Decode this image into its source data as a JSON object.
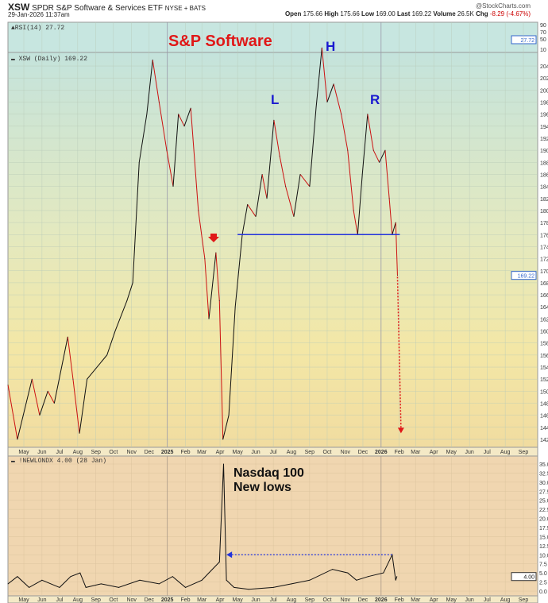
{
  "header": {
    "symbol": "XSW",
    "name": "SPDR S&P Software & Services ETF",
    "exchange": "NYSE + BATS",
    "datetime": "29-Jan-2026 11:37am",
    "credit": "@StockCharts.com",
    "open_label": "Open",
    "open": "175.66",
    "high_label": "High",
    "high": "175.66",
    "low_label": "Low",
    "low": "169.00",
    "last_label": "Last",
    "last": "169.22",
    "volume_label": "Volume",
    "volume": "26.5K",
    "chg_label": "Chg",
    "chg": "-8.29 (-4.67%)"
  },
  "colors": {
    "up": "#111111",
    "down": "#cc1111",
    "annotation_red": "#e01818",
    "annotation_blue": "#1a1ad0",
    "neckline": "#2233dd"
  },
  "chart_data": [
    {
      "type": "line",
      "panel": "rsi",
      "legend": "RSI(14) 27.72",
      "last_label": "27.72",
      "yticks": [
        "90",
        "70",
        "50",
        "10"
      ]
    },
    {
      "type": "line",
      "panel": "price",
      "legend": "XSW (Daily) 169.22",
      "last_label": "169.22",
      "ylim": [
        141,
        208
      ],
      "yticks": [
        142,
        144,
        146,
        148,
        150,
        152,
        154,
        156,
        158,
        160,
        162,
        164,
        166,
        168,
        170,
        172,
        174,
        176,
        178,
        180,
        182,
        184,
        186,
        188,
        190,
        192,
        194,
        196,
        198,
        200,
        202,
        204
      ],
      "xticks": [
        "May",
        "Jun",
        "Jul",
        "Aug",
        "Sep",
        "Oct",
        "Nov",
        "Dec",
        "2025",
        "Feb",
        "Mar",
        "Apr",
        "May",
        "Jun",
        "Jul",
        "Aug",
        "Sep",
        "Oct",
        "Nov",
        "Dec",
        "2026",
        "Feb",
        "Mar",
        "Apr",
        "May",
        "Jun",
        "Jul",
        "Aug",
        "Sep"
      ],
      "points": [
        [
          "2024-04-04",
          151
        ],
        [
          "2024-04-20",
          142
        ],
        [
          "2024-05-15",
          152
        ],
        [
          "2024-05-28",
          146
        ],
        [
          "2024-06-11",
          150
        ],
        [
          "2024-06-22",
          148
        ],
        [
          "2024-07-15",
          159
        ],
        [
          "2024-07-24",
          152
        ],
        [
          "2024-08-04",
          143
        ],
        [
          "2024-08-17",
          152
        ],
        [
          "2024-09-03",
          154
        ],
        [
          "2024-09-20",
          156
        ],
        [
          "2024-10-04",
          160
        ],
        [
          "2024-10-24",
          165
        ],
        [
          "2024-11-03",
          168
        ],
        [
          "2024-11-14",
          188
        ],
        [
          "2024-11-27",
          196
        ],
        [
          "2024-12-07",
          205
        ],
        [
          "2024-12-18",
          198
        ],
        [
          "2024-12-31",
          190
        ],
        [
          "2025-01-11",
          184
        ],
        [
          "2025-01-20",
          196
        ],
        [
          "2025-01-30",
          194
        ],
        [
          "2025-02-10",
          197
        ],
        [
          "2025-02-23",
          180
        ],
        [
          "2025-03-06",
          172
        ],
        [
          "2025-03-13",
          162
        ],
        [
          "2025-03-25",
          173
        ],
        [
          "2025-03-31",
          165
        ],
        [
          "2025-04-06",
          142
        ],
        [
          "2025-04-16",
          146
        ],
        [
          "2025-04-27",
          164
        ],
        [
          "2025-05-09",
          176
        ],
        [
          "2025-05-18",
          181
        ],
        [
          "2025-06-01",
          179
        ],
        [
          "2025-06-12",
          186
        ],
        [
          "2025-06-20",
          182
        ],
        [
          "2025-07-02",
          195
        ],
        [
          "2025-07-12",
          189
        ],
        [
          "2025-07-22",
          184
        ],
        [
          "2025-08-05",
          179
        ],
        [
          "2025-08-16",
          186
        ],
        [
          "2025-09-01",
          184
        ],
        [
          "2025-09-12",
          197
        ],
        [
          "2025-09-22",
          207
        ],
        [
          "2025-10-01",
          198
        ],
        [
          "2025-10-12",
          201
        ],
        [
          "2025-10-25",
          196
        ],
        [
          "2025-11-05",
          190
        ],
        [
          "2025-11-15",
          180
        ],
        [
          "2025-11-22",
          176
        ],
        [
          "2025-11-30",
          186
        ],
        [
          "2025-12-09",
          196
        ],
        [
          "2025-12-19",
          190
        ],
        [
          "2025-12-29",
          188
        ],
        [
          "2026-01-08",
          190
        ],
        [
          "2026-01-15",
          182
        ],
        [
          "2026-01-20",
          176
        ],
        [
          "2026-01-26",
          178
        ],
        [
          "2026-01-29",
          169.22
        ]
      ],
      "neckline": {
        "value": 176,
        "from": "2025-05-01",
        "to": "2026-02-02"
      },
      "target_arrow": {
        "from": [
          "2026-01-29",
          169
        ],
        "to": [
          "2026-02-04",
          143
        ]
      },
      "annotations": {
        "title": "S&P Software",
        "left_shoulder": "L",
        "head": "H",
        "right_shoulder": "R"
      }
    },
    {
      "type": "line",
      "panel": "new_lows",
      "legend": "!NEWLONDX 4.00 (28 Jan)",
      "last_label": "4.00",
      "ylim": [
        0,
        36.5
      ],
      "yticks": [
        "0.0",
        "2.5",
        "5.0",
        "7.5",
        "10.0",
        "12.5",
        "15.0",
        "17.5",
        "20.0",
        "22.5",
        "25.0",
        "27.5",
        "30.0",
        "32.5",
        "35.0"
      ],
      "points": [
        [
          "2024-04-04",
          2
        ],
        [
          "2024-04-20",
          4
        ],
        [
          "2024-05-10",
          1
        ],
        [
          "2024-06-01",
          3
        ],
        [
          "2024-07-01",
          1
        ],
        [
          "2024-07-20",
          4
        ],
        [
          "2024-08-05",
          5
        ],
        [
          "2024-08-15",
          1
        ],
        [
          "2024-09-10",
          2
        ],
        [
          "2024-10-10",
          1
        ],
        [
          "2024-11-15",
          3
        ],
        [
          "2024-12-18",
          2
        ],
        [
          "2025-01-10",
          4
        ],
        [
          "2025-02-01",
          1
        ],
        [
          "2025-03-01",
          3
        ],
        [
          "2025-03-13",
          5
        ],
        [
          "2025-03-31",
          8
        ],
        [
          "2025-04-07",
          35
        ],
        [
          "2025-04-12",
          3
        ],
        [
          "2025-04-25",
          1
        ],
        [
          "2025-05-20",
          0.5
        ],
        [
          "2025-07-01",
          1
        ],
        [
          "2025-08-01",
          2
        ],
        [
          "2025-09-01",
          3
        ],
        [
          "2025-10-10",
          6
        ],
        [
          "2025-11-05",
          5
        ],
        [
          "2025-11-20",
          3
        ],
        [
          "2025-12-10",
          4
        ],
        [
          "2026-01-05",
          5
        ],
        [
          "2026-01-20",
          10
        ],
        [
          "2026-01-26",
          3
        ],
        [
          "2026-01-28",
          4
        ]
      ],
      "reference_arrow": {
        "value": 10,
        "from": "2026-01-20",
        "to": "2025-04-12"
      },
      "annotation": [
        "Nasdaq 100",
        "New lows"
      ]
    }
  ]
}
